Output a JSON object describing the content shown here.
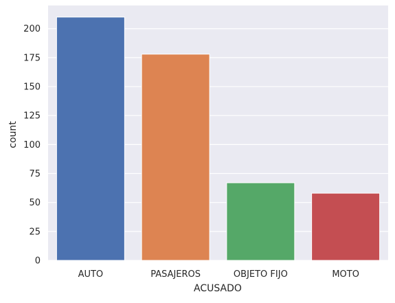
{
  "chart_data": {
    "type": "bar",
    "xlabel": "ACUSADO",
    "ylabel": "count",
    "categories": [
      "AUTO",
      "PASAJEROS",
      "OBJETO FIJO",
      "MOTO"
    ],
    "values": [
      210,
      178,
      67,
      58
    ],
    "ylim": [
      0,
      220
    ],
    "yticks": [
      "0",
      "25",
      "50",
      "75",
      "100",
      "125",
      "150",
      "175",
      "200"
    ],
    "grid": true,
    "legend": "none",
    "colors": {
      "background": "#eaeaf2",
      "grid": "#ffffff",
      "bars": [
        "#4c72b0",
        "#dd8452",
        "#55a868",
        "#c44e52"
      ]
    }
  }
}
